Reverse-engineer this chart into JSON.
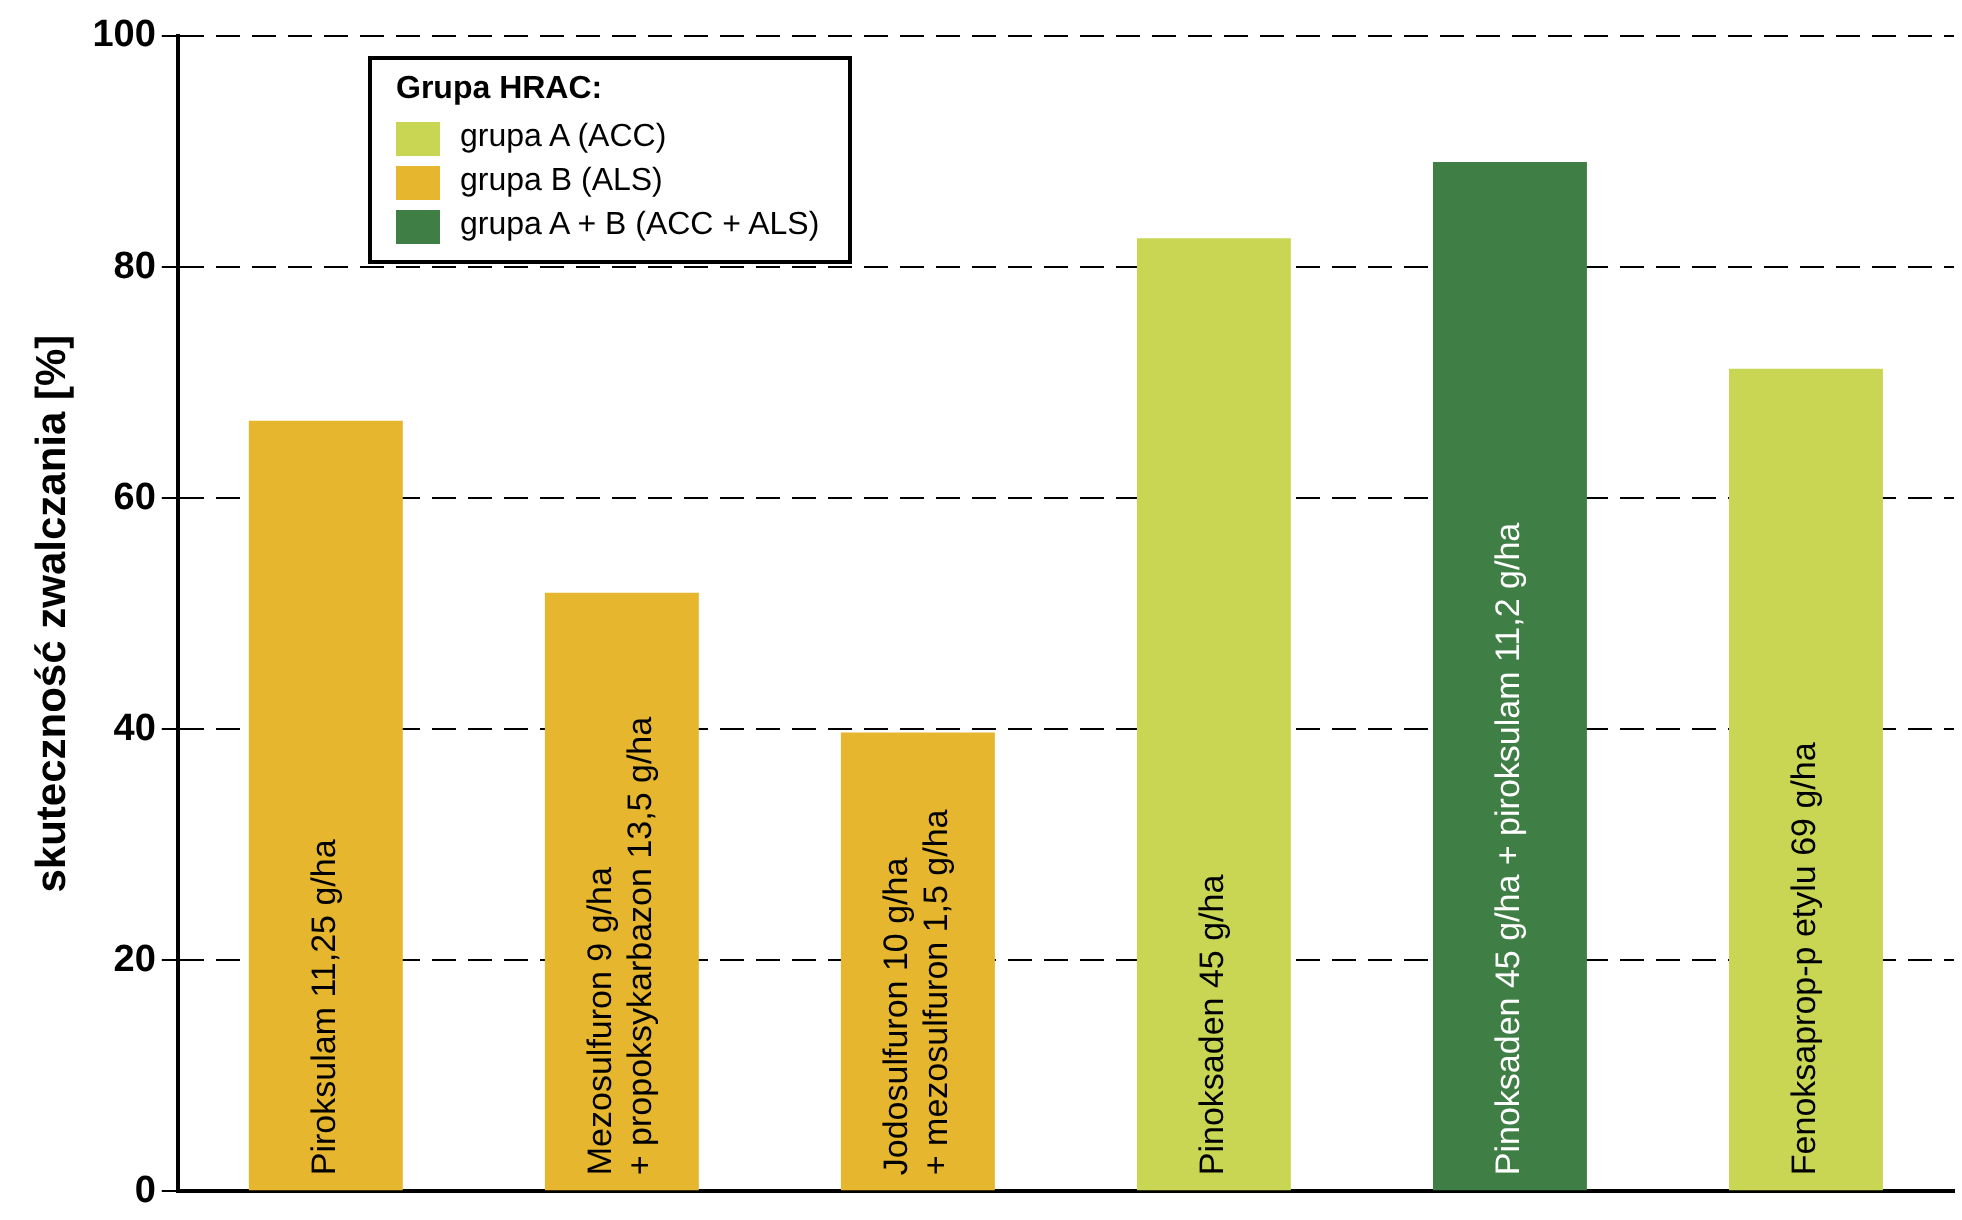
{
  "chart_data": {
    "type": "bar",
    "ylabel": "skuteczność zwalczania [%]",
    "legend_title": "Grupa HRAC:",
    "categories": [
      "Piroksulam 11,25 g/ha",
      "Mezosulfuron 9 g/ha\n+ propoksykarbazon 13,5 g/ha",
      "Jodosulfuron 10 g/ha\n+ mezosulfuron 1,5 g/ha",
      "Pinoksaden 45 g/ha",
      "Pinoksaden 45 g/ha + piroksulam 11,2 g/ha",
      "Fenoksaprop-p etylu 69 g/ha"
    ],
    "series": [
      {
        "name": "grupa A (ACC)",
        "color": "#c9d654",
        "values": [
          null,
          null,
          null,
          82.5,
          null,
          71.2
        ]
      },
      {
        "name": "grupa B (ALS)",
        "color": "#e6b62e",
        "values": [
          66.7,
          51.8,
          39.7,
          null,
          null,
          null
        ]
      },
      {
        "name": "grupa A + B (ACC + ALS)",
        "color": "#3f7f45",
        "values": [
          null,
          null,
          null,
          null,
          89.1,
          null
        ]
      }
    ],
    "stacked": true,
    "ylim": [
      0,
      100
    ],
    "yticks": [
      0,
      20,
      40,
      60,
      80,
      100
    ],
    "grid": "y",
    "legend": "top left"
  }
}
